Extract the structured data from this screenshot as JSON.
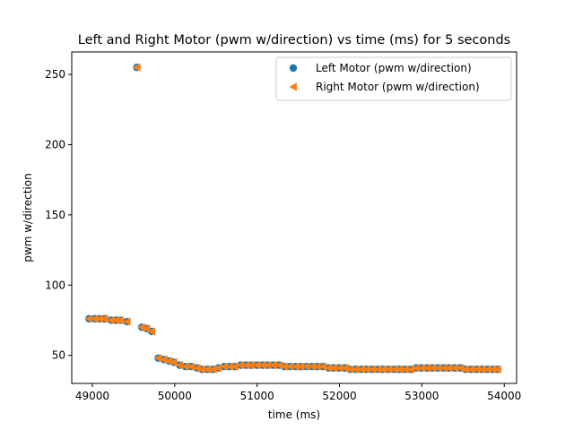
{
  "chart_data": {
    "type": "scatter",
    "title": "Left and Right Motor (pwm w/direction) vs time (ms) for 5 seconds",
    "xlabel": "time (ms)",
    "ylabel": "pwm w/direction",
    "xlim": [
      48750,
      54150
    ],
    "ylim": [
      30,
      266
    ],
    "xticks": [
      49000,
      50000,
      51000,
      52000,
      53000,
      54000
    ],
    "yticks": [
      50,
      100,
      150,
      200,
      250
    ],
    "legend_position": "top-right",
    "grid": false,
    "series": [
      {
        "name": "Left Motor (pwm w/direction)",
        "marker": "circle",
        "color": "#1f77b4",
        "points": [
          [
            48960,
            76
          ],
          [
            49030,
            76
          ],
          [
            49090,
            76
          ],
          [
            49150,
            76
          ],
          [
            49230,
            75
          ],
          [
            49290,
            75
          ],
          [
            49340,
            75
          ],
          [
            49420,
            74
          ],
          [
            49540,
            255
          ],
          [
            49600,
            70
          ],
          [
            49660,
            69
          ],
          [
            49720,
            67
          ],
          [
            49800,
            48
          ],
          [
            49870,
            47
          ],
          [
            49930,
            46
          ],
          [
            49990,
            45
          ],
          [
            50060,
            43
          ],
          [
            50130,
            42
          ],
          [
            50200,
            42
          ],
          [
            50270,
            41
          ],
          [
            50330,
            40
          ],
          [
            50400,
            40
          ],
          [
            50470,
            40
          ],
          [
            50530,
            41
          ],
          [
            50600,
            42
          ],
          [
            50670,
            42
          ],
          [
            50730,
            42
          ],
          [
            50800,
            43
          ],
          [
            50870,
            43
          ],
          [
            50930,
            43
          ],
          [
            51000,
            43
          ],
          [
            51070,
            43
          ],
          [
            51130,
            43
          ],
          [
            51200,
            43
          ],
          [
            51270,
            43
          ],
          [
            51330,
            42
          ],
          [
            51400,
            42
          ],
          [
            51470,
            42
          ],
          [
            51530,
            42
          ],
          [
            51600,
            42
          ],
          [
            51670,
            42
          ],
          [
            51730,
            42
          ],
          [
            51800,
            42
          ],
          [
            51870,
            41
          ],
          [
            51930,
            41
          ],
          [
            52000,
            41
          ],
          [
            52070,
            41
          ],
          [
            52130,
            40
          ],
          [
            52200,
            40
          ],
          [
            52270,
            40
          ],
          [
            52330,
            40
          ],
          [
            52400,
            40
          ],
          [
            52470,
            40
          ],
          [
            52530,
            40
          ],
          [
            52600,
            40
          ],
          [
            52670,
            40
          ],
          [
            52730,
            40
          ],
          [
            52800,
            40
          ],
          [
            52870,
            40
          ],
          [
            52930,
            41
          ],
          [
            53000,
            41
          ],
          [
            53070,
            41
          ],
          [
            53130,
            41
          ],
          [
            53200,
            41
          ],
          [
            53270,
            41
          ],
          [
            53330,
            41
          ],
          [
            53400,
            41
          ],
          [
            53470,
            41
          ],
          [
            53530,
            40
          ],
          [
            53600,
            40
          ],
          [
            53670,
            40
          ],
          [
            53730,
            40
          ],
          [
            53800,
            40
          ],
          [
            53860,
            40
          ],
          [
            53920,
            40
          ]
        ]
      },
      {
        "name": "Right Motor (pwm w/direction)",
        "marker": "triangle-left",
        "color": "#ff7f0e",
        "points": [
          [
            48960,
            76
          ],
          [
            49030,
            76
          ],
          [
            49090,
            76
          ],
          [
            49150,
            76
          ],
          [
            49230,
            75
          ],
          [
            49290,
            75
          ],
          [
            49340,
            75
          ],
          [
            49420,
            74
          ],
          [
            49540,
            255
          ],
          [
            49600,
            70
          ],
          [
            49660,
            69
          ],
          [
            49720,
            67
          ],
          [
            49800,
            48
          ],
          [
            49870,
            47
          ],
          [
            49930,
            46
          ],
          [
            49990,
            45
          ],
          [
            50060,
            43
          ],
          [
            50130,
            42
          ],
          [
            50200,
            42
          ],
          [
            50270,
            41
          ],
          [
            50330,
            40
          ],
          [
            50400,
            40
          ],
          [
            50470,
            40
          ],
          [
            50530,
            41
          ],
          [
            50600,
            42
          ],
          [
            50670,
            42
          ],
          [
            50730,
            42
          ],
          [
            50800,
            43
          ],
          [
            50870,
            43
          ],
          [
            50930,
            43
          ],
          [
            51000,
            43
          ],
          [
            51070,
            43
          ],
          [
            51130,
            43
          ],
          [
            51200,
            43
          ],
          [
            51270,
            43
          ],
          [
            51330,
            42
          ],
          [
            51400,
            42
          ],
          [
            51470,
            42
          ],
          [
            51530,
            42
          ],
          [
            51600,
            42
          ],
          [
            51670,
            42
          ],
          [
            51730,
            42
          ],
          [
            51800,
            42
          ],
          [
            51870,
            41
          ],
          [
            51930,
            41
          ],
          [
            52000,
            41
          ],
          [
            52070,
            41
          ],
          [
            52130,
            40
          ],
          [
            52200,
            40
          ],
          [
            52270,
            40
          ],
          [
            52330,
            40
          ],
          [
            52400,
            40
          ],
          [
            52470,
            40
          ],
          [
            52530,
            40
          ],
          [
            52600,
            40
          ],
          [
            52670,
            40
          ],
          [
            52730,
            40
          ],
          [
            52800,
            40
          ],
          [
            52870,
            40
          ],
          [
            52930,
            41
          ],
          [
            53000,
            41
          ],
          [
            53070,
            41
          ],
          [
            53130,
            41
          ],
          [
            53200,
            41
          ],
          [
            53270,
            41
          ],
          [
            53330,
            41
          ],
          [
            53400,
            41
          ],
          [
            53470,
            41
          ],
          [
            53530,
            40
          ],
          [
            53600,
            40
          ],
          [
            53670,
            40
          ],
          [
            53730,
            40
          ],
          [
            53800,
            40
          ],
          [
            53860,
            40
          ],
          [
            53920,
            40
          ]
        ]
      }
    ]
  }
}
